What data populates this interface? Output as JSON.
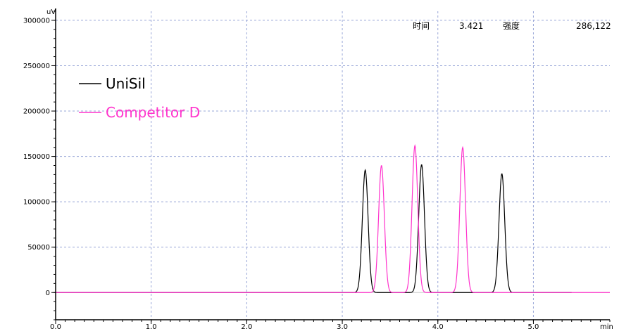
{
  "header": {
    "time_label": "时间",
    "time_value": "3.421",
    "intensity_label": "强度",
    "intensity_value": "286,122"
  },
  "chart_data": {
    "type": "line",
    "title": "",
    "xlabel": "min",
    "ylabel": "uV",
    "xlim": [
      0.0,
      5.8
    ],
    "ylim": [
      -30000,
      310000
    ],
    "xticks": [
      0.0,
      1.0,
      2.0,
      3.0,
      4.0,
      5.0
    ],
    "xtick_labels": [
      "0.0",
      "1.0",
      "2.0",
      "3.0",
      "4.0",
      "5.0"
    ],
    "yticks": [
      0,
      50000,
      100000,
      150000,
      200000,
      250000,
      300000
    ],
    "ytick_labels": [
      "0",
      "50000",
      "100000",
      "150000",
      "200000",
      "250000",
      "300000"
    ],
    "grid": true,
    "legend": "top-left",
    "series": [
      {
        "name": "UniSil",
        "color": "#000000",
        "peaks": [
          {
            "rt": 3.24,
            "height": 135000
          },
          {
            "rt": 3.83,
            "height": 141000
          },
          {
            "rt": 4.67,
            "height": 131000
          }
        ],
        "x_range": [
          0.0,
          5.4
        ]
      },
      {
        "name": "Competitor D",
        "color": "#ff33cc",
        "peaks": [
          {
            "rt": 3.41,
            "height": 140000
          },
          {
            "rt": 3.76,
            "height": 162000
          },
          {
            "rt": 4.26,
            "height": 160000
          }
        ],
        "x_range": [
          0.0,
          5.8
        ]
      }
    ]
  }
}
